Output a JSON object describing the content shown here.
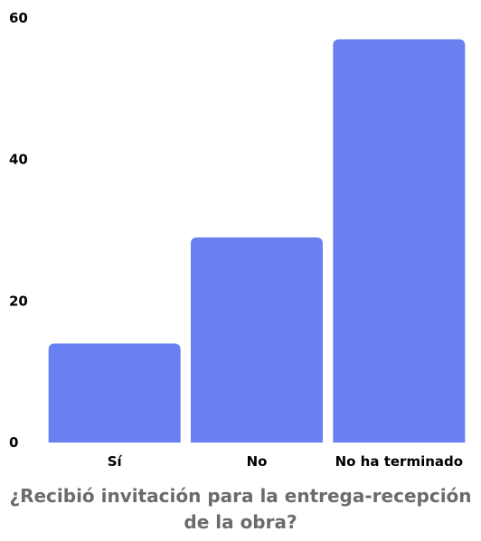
{
  "chart_data": {
    "type": "bar",
    "title": "¿Recibió invitación para la entrega-recepción de la obra?",
    "categories": [
      "Sí",
      "No",
      "No ha terminado"
    ],
    "values": [
      14,
      29,
      57
    ],
    "ylim": [
      0,
      60
    ],
    "yticks": [
      "0",
      "20",
      "40",
      "60"
    ],
    "ytick_values": [
      0,
      20,
      40,
      60
    ],
    "grid": false,
    "legend": "none",
    "bar_color": "#6980f0",
    "title_color": "#6b6b6b"
  }
}
